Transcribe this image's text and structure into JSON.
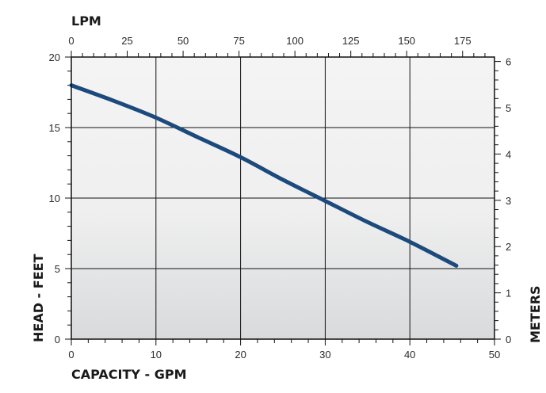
{
  "chart_data": {
    "type": "line",
    "title": "",
    "xlabel": "CAPACITY - GPM",
    "ylabel": "HEAD - FEET",
    "x2label": "LPM",
    "y2label": "METERS",
    "xlim": [
      0,
      50
    ],
    "ylim": [
      0,
      20
    ],
    "x2lim": [
      0,
      189.27
    ],
    "y2lim": [
      0,
      6.096
    ],
    "x_ticks": [
      0,
      10,
      20,
      30,
      40,
      50
    ],
    "y_ticks": [
      0,
      5,
      10,
      15,
      20
    ],
    "x2_ticks": [
      0,
      25,
      50,
      75,
      100,
      125,
      150,
      175
    ],
    "y2_ticks": [
      0,
      1,
      2,
      3,
      4,
      5,
      6
    ],
    "grid": true,
    "legend": "none",
    "series": [
      {
        "color": "#1c4a7c",
        "x": [
          0,
          5,
          10,
          15,
          20,
          25,
          30,
          35,
          40,
          45.5
        ],
        "y": [
          18.0,
          16.9,
          15.7,
          14.3,
          12.9,
          11.3,
          9.8,
          8.3,
          6.9,
          5.2
        ]
      }
    ]
  }
}
